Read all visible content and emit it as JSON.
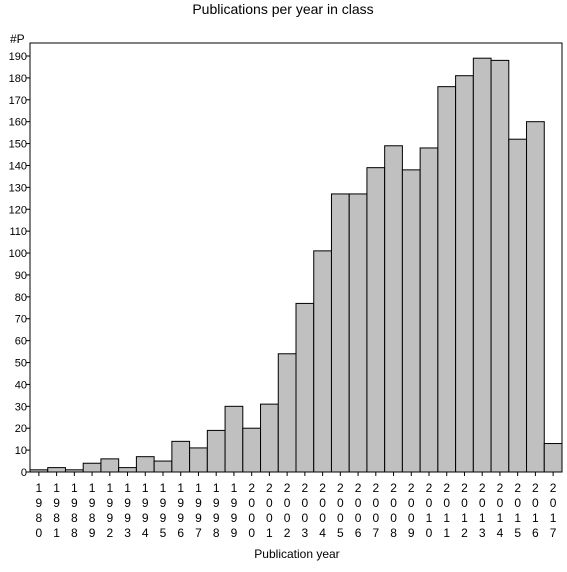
{
  "chart_data": {
    "type": "bar",
    "title": "Publications per year in class",
    "xlabel": "Publication year",
    "ylabel": "#P",
    "ylim": [
      0,
      190
    ],
    "ytick_step": 10,
    "grid": false,
    "bar_color": "#c0c0c0",
    "categories": [
      "1980",
      "1981",
      "1988",
      "1989",
      "1992",
      "1993",
      "1994",
      "1995",
      "1996",
      "1997",
      "1998",
      "1999",
      "2000",
      "2001",
      "2002",
      "2003",
      "2004",
      "2005",
      "2006",
      "2007",
      "2008",
      "2009",
      "2010",
      "2011",
      "2012",
      "2013",
      "2014",
      "2015",
      "2016",
      "2017"
    ],
    "values": [
      1,
      2,
      1,
      4,
      6,
      2,
      7,
      5,
      14,
      11,
      19,
      30,
      20,
      31,
      54,
      77,
      101,
      127,
      127,
      139,
      149,
      138,
      148,
      176,
      181,
      189,
      188,
      152,
      160,
      13
    ]
  }
}
